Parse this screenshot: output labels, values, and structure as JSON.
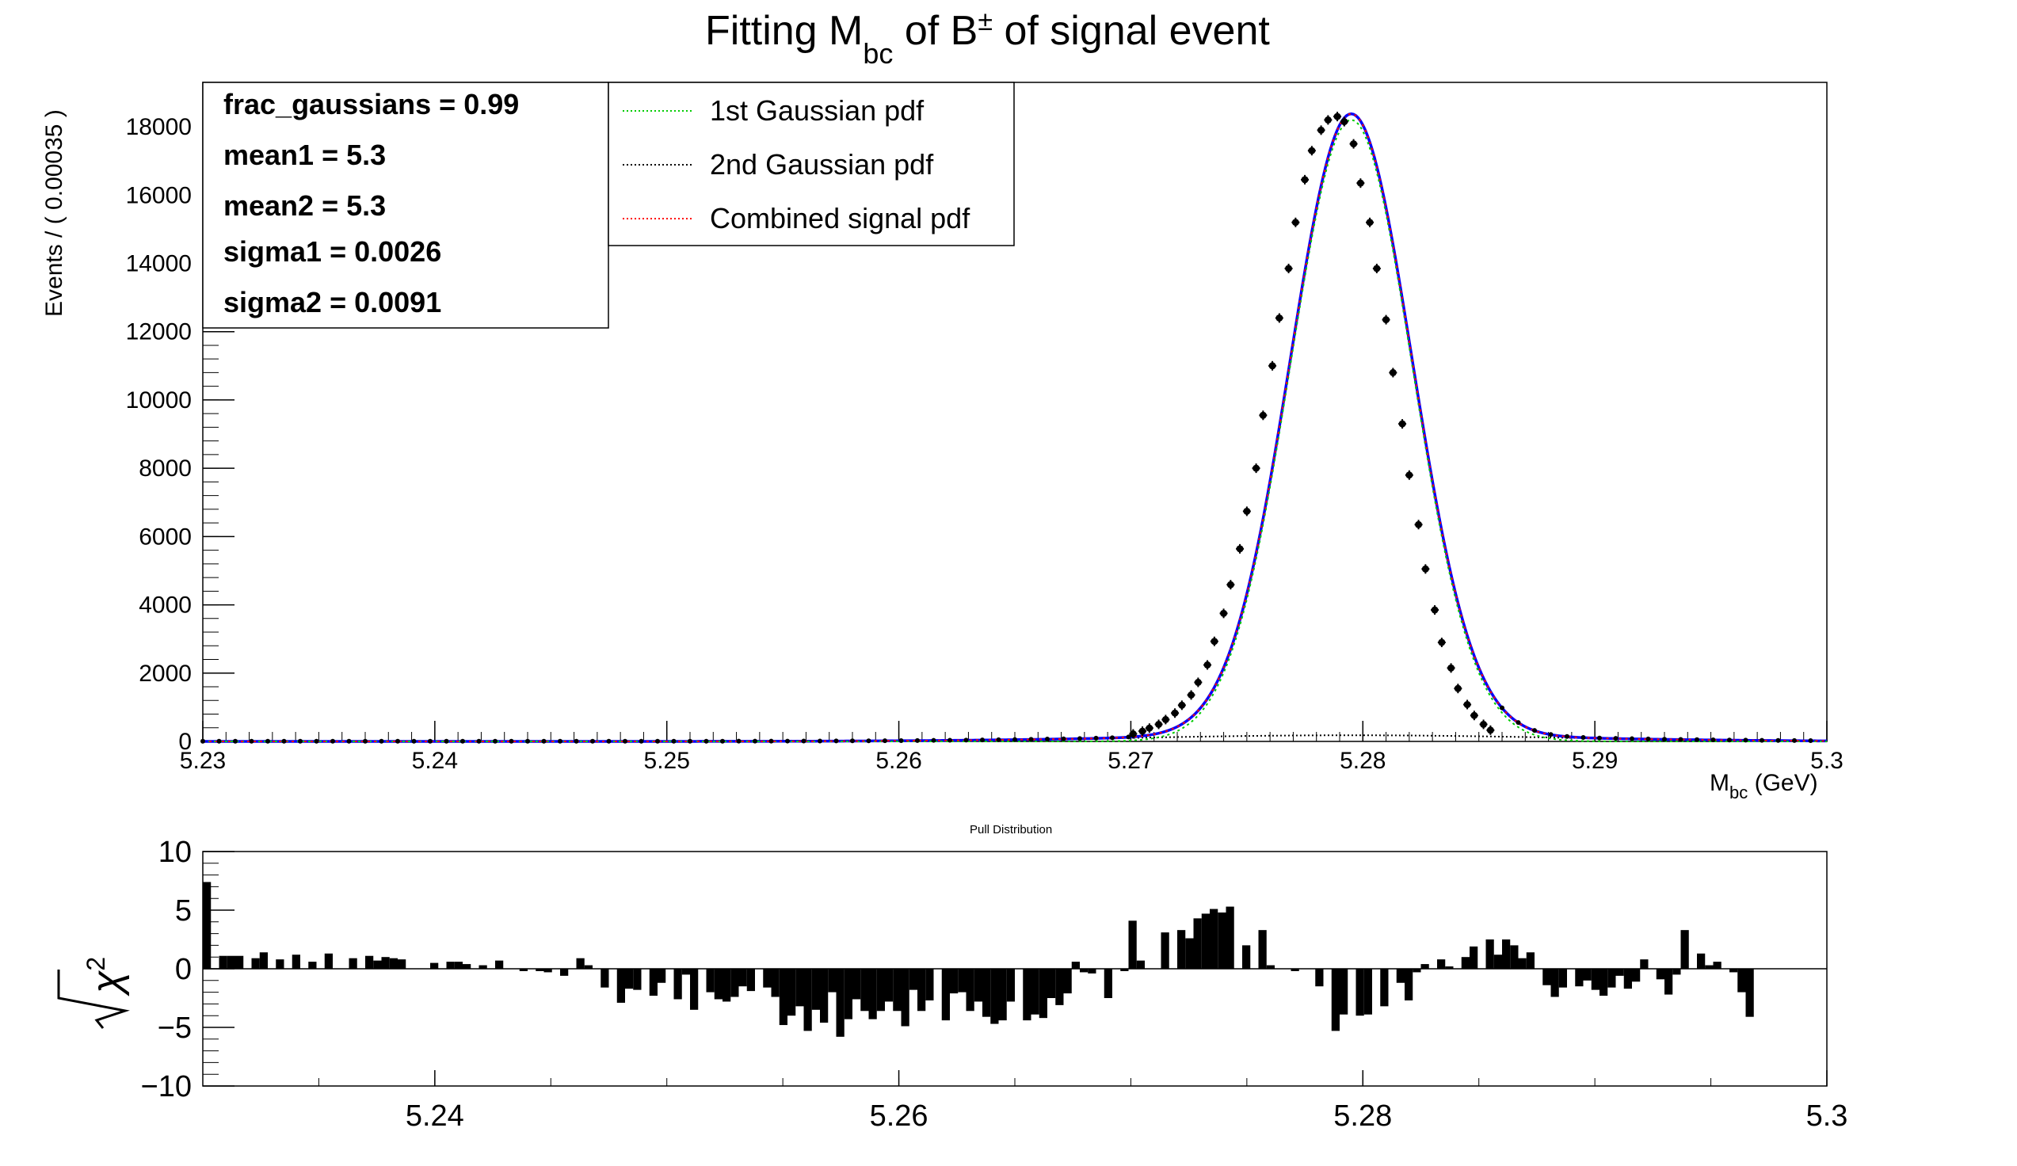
{
  "chart_data": [
    {
      "type": "scatter",
      "title": "Fitting M",
      "title_sub": "bc",
      "title_mid": " of B",
      "title_sup": "±",
      "title_end": " of signal event",
      "xlabel_main": "M",
      "xlabel_sub": "bc",
      "xlabel_unit": " (GeV)",
      "ylabel": "Events / ( 0.00035 )",
      "xlim": [
        5.23,
        5.3
      ],
      "ylim": [
        0,
        19300
      ],
      "x_ticks": [
        "5.23",
        "5.24",
        "5.25",
        "5.26",
        "5.27",
        "5.28",
        "5.29",
        "5.3"
      ],
      "y_ticks": [
        "0",
        "2000",
        "4000",
        "6000",
        "8000",
        "10000",
        "12000",
        "14000",
        "16000",
        "18000"
      ],
      "fit_params": [
        {
          "name": "frac_gaussians =",
          "value": "0.99"
        },
        {
          "name": "mean1 =",
          "value": "5.3"
        },
        {
          "name": "mean2 =",
          "value": "5.3"
        },
        {
          "name": "sigma1 =",
          "value": "0.0026"
        },
        {
          "name": "sigma2 =",
          "value": "0.0091"
        }
      ],
      "legend": [
        {
          "label": "1st Gaussian pdf",
          "color": "#00cc00"
        },
        {
          "label": "2nd Gaussian pdf",
          "color": "#000000"
        },
        {
          "label": "Combined signal pdf",
          "color": "#ff0000"
        }
      ],
      "model": {
        "mean": 5.2795,
        "sigma": 0.00262,
        "peak": 18200,
        "tail_amp": 180,
        "tail_sigma": 0.0091,
        "tail_mean": 5.2795
      },
      "data_points": [
        [
          5.2701,
          220
        ],
        [
          5.2705,
          300
        ],
        [
          5.2708,
          390
        ],
        [
          5.2712,
          500
        ],
        [
          5.2715,
          640
        ],
        [
          5.2719,
          830
        ],
        [
          5.2722,
          1060
        ],
        [
          5.2726,
          1360
        ],
        [
          5.2729,
          1730
        ],
        [
          5.2733,
          2240
        ],
        [
          5.2736,
          2930
        ],
        [
          5.274,
          3750
        ],
        [
          5.2743,
          4590
        ],
        [
          5.2747,
          5640
        ],
        [
          5.275,
          6740
        ],
        [
          5.2754,
          8000
        ],
        [
          5.2757,
          9550
        ],
        [
          5.2761,
          11000
        ],
        [
          5.2764,
          12400
        ],
        [
          5.2768,
          13850
        ],
        [
          5.2771,
          15200
        ],
        [
          5.2775,
          16450
        ],
        [
          5.2778,
          17300
        ],
        [
          5.2782,
          17900
        ],
        [
          5.2785,
          18200
        ],
        [
          5.2789,
          18300
        ],
        [
          5.2792,
          18150
        ],
        [
          5.2796,
          17500
        ],
        [
          5.2799,
          16350
        ],
        [
          5.2803,
          15200
        ],
        [
          5.2806,
          13850
        ],
        [
          5.281,
          12350
        ],
        [
          5.2813,
          10800
        ],
        [
          5.2817,
          9300
        ],
        [
          5.282,
          7800
        ],
        [
          5.2824,
          6350
        ],
        [
          5.2827,
          5050
        ],
        [
          5.2831,
          3850
        ],
        [
          5.2834,
          2900
        ],
        [
          5.2838,
          2150
        ],
        [
          5.2841,
          1550
        ],
        [
          5.2845,
          1080
        ],
        [
          5.2848,
          760
        ],
        [
          5.2852,
          500
        ],
        [
          5.2855,
          330
        ]
      ],
      "line_color": "#0000ff",
      "marker_color": "#000000",
      "grid": false
    },
    {
      "type": "bar",
      "title": "Pull Distribution",
      "ylabel": "χ",
      "ylabel_sup": "2",
      "ylim": [
        -10,
        10
      ],
      "xlim": [
        5.23,
        5.3
      ],
      "x_ticks": [
        "5.24",
        "5.26",
        "5.28",
        "5.3"
      ],
      "y_ticks": [
        "10",
        "5",
        "0",
        "−5",
        "−10"
      ],
      "bin_start": 5.23,
      "bin_width": 0.00035,
      "values": [
        7.4,
        0,
        1.1,
        1.1,
        1.1,
        0,
        0.9,
        1.4,
        0,
        0.8,
        0,
        1.2,
        0,
        0.6,
        0,
        1.3,
        0,
        0,
        0.9,
        0,
        1.1,
        0.7,
        1.0,
        0.9,
        0.8,
        0,
        0,
        0,
        0.5,
        0,
        0.6,
        0.6,
        0.4,
        0,
        0.3,
        0,
        0.7,
        0,
        0,
        -0.2,
        0,
        -0.2,
        -0.3,
        0,
        -0.6,
        0,
        0.9,
        0.3,
        0,
        -1.6,
        0,
        -2.9,
        -1.7,
        -1.8,
        0,
        -2.3,
        -1.2,
        0,
        -2.6,
        -0.5,
        -3.5,
        0,
        -2.0,
        -2.6,
        -2.8,
        -2.4,
        -1.5,
        -1.9,
        0,
        -1.6,
        -2.4,
        -4.8,
        -4.0,
        -3.2,
        -5.3,
        -3.5,
        -4.6,
        -2.0,
        -5.8,
        -4.3,
        -2.6,
        -3.6,
        -4.3,
        -3.6,
        -2.8,
        -3.6,
        -4.9,
        -1.8,
        -3.6,
        -2.7,
        0,
        -4.4,
        -2.1,
        -2.0,
        -3.6,
        -2.8,
        -4.1,
        -4.7,
        -4.4,
        -2.8,
        0,
        -4.4,
        -3.9,
        -4.2,
        -2.5,
        -3.1,
        -2.1,
        0.6,
        -0.3,
        -0.4,
        0,
        -2.5,
        0,
        -0.2,
        4.1,
        0.7,
        0,
        0,
        3.1,
        0,
        3.3,
        2.6,
        4.3,
        4.7,
        5.1,
        4.8,
        5.3,
        0,
        2.0,
        0,
        3.3,
        0.3,
        0,
        0,
        -0.2,
        0,
        0,
        -1.5,
        0,
        -5.3,
        -3.9,
        0,
        -4.0,
        -3.9,
        0,
        -3.2,
        0,
        -1.2,
        -2.7,
        -0.3,
        0.4,
        0,
        0.8,
        0.2,
        0,
        1.0,
        1.9,
        0,
        2.5,
        1.2,
        2.5,
        2.0,
        0.9,
        1.4,
        0,
        -1.4,
        -2.4,
        -1.6,
        0,
        -1.5,
        -1.0,
        -1.8,
        -2.3,
        -1.6,
        -0.6,
        -1.7,
        -1.1,
        0.8,
        0,
        -0.9,
        -2.2,
        -0.5,
        3.3,
        0,
        1.3,
        0.3,
        0.6,
        0,
        -0.3,
        -2.0,
        -4.1,
        0,
        0,
        0,
        0,
        0,
        0,
        0,
        0,
        0,
        0,
        0,
        0,
        0,
        0,
        0,
        0,
        0,
        0,
        0,
        0,
        0,
        0,
        0,
        0,
        0,
        0,
        0,
        0,
        0,
        0,
        0,
        0,
        0,
        0,
        0,
        0
      ],
      "bar_color": "#000000"
    }
  ]
}
